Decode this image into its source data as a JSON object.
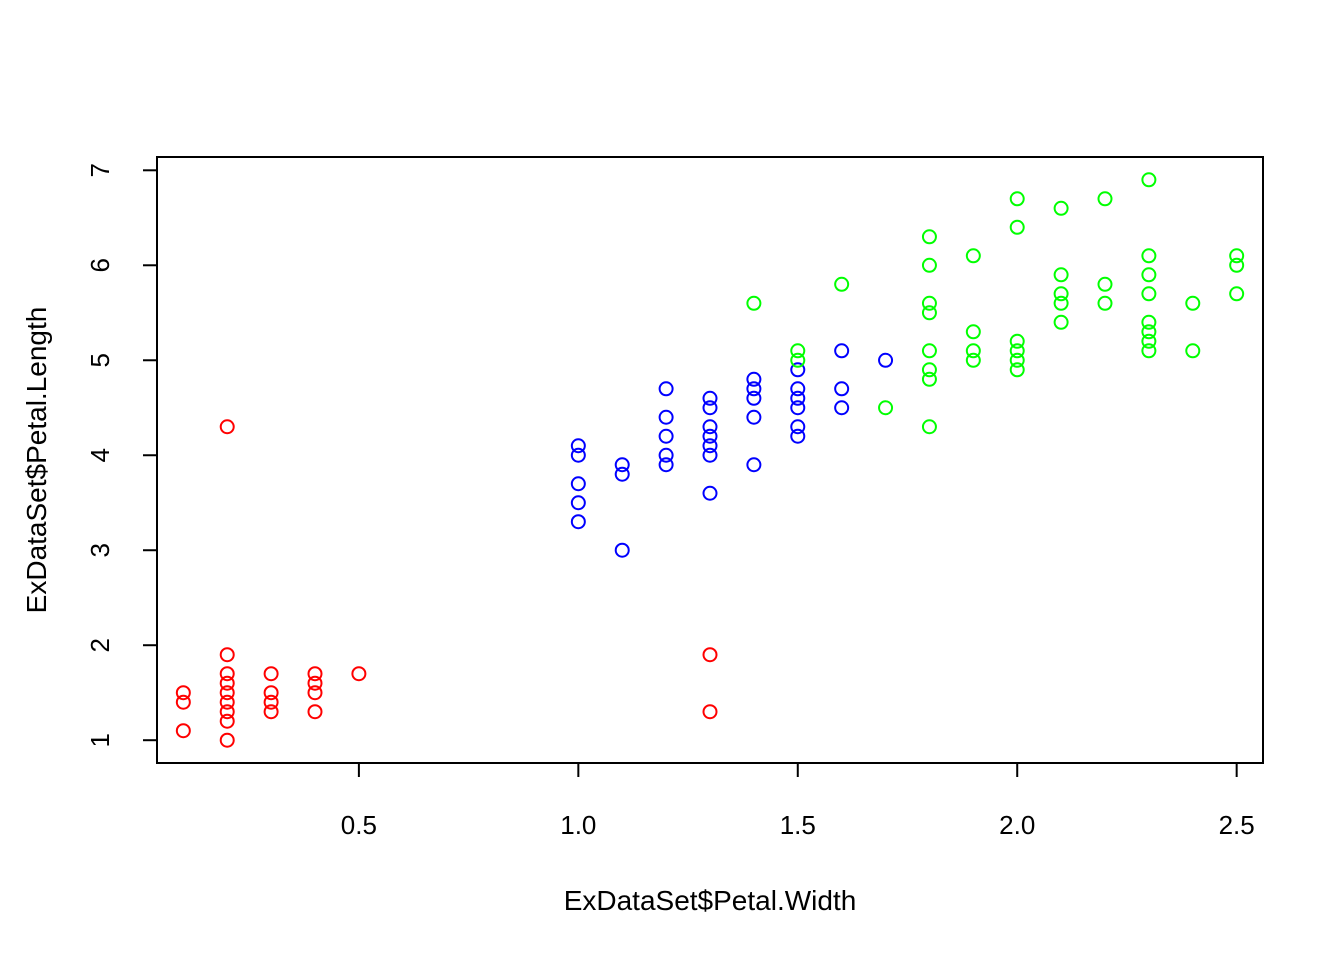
{
  "chart_data": {
    "type": "scatter",
    "title": "",
    "xlabel": "ExDataSet$Petal.Width",
    "ylabel": "ExDataSet$Petal.Length",
    "xlim": [
      0.04,
      2.56
    ],
    "ylim": [
      0.76,
      7.14
    ],
    "x_ticks": [
      0.5,
      1.0,
      1.5,
      2.0,
      2.5
    ],
    "x_tick_labels": [
      "0.5",
      "1.0",
      "1.5",
      "2.0",
      "2.5"
    ],
    "y_ticks": [
      1,
      2,
      3,
      4,
      5,
      6,
      7
    ],
    "y_tick_labels": [
      "1",
      "2",
      "3",
      "4",
      "5",
      "6",
      "7"
    ],
    "grid": false,
    "legend": "none",
    "marker": "open-circle",
    "series": [
      {
        "color": "#ff0000",
        "points": [
          [
            0.1,
            1.1
          ],
          [
            0.1,
            1.4
          ],
          [
            0.1,
            1.5
          ],
          [
            0.2,
            1.0
          ],
          [
            0.2,
            1.2
          ],
          [
            0.2,
            1.3
          ],
          [
            0.2,
            1.4
          ],
          [
            0.2,
            1.5
          ],
          [
            0.2,
            1.6
          ],
          [
            0.2,
            1.7
          ],
          [
            0.2,
            1.9
          ],
          [
            0.2,
            4.3
          ],
          [
            0.3,
            1.3
          ],
          [
            0.3,
            1.4
          ],
          [
            0.3,
            1.5
          ],
          [
            0.3,
            1.7
          ],
          [
            0.4,
            1.3
          ],
          [
            0.4,
            1.5
          ],
          [
            0.4,
            1.6
          ],
          [
            0.4,
            1.7
          ],
          [
            0.5,
            1.7
          ],
          [
            1.3,
            1.3
          ],
          [
            1.3,
            1.9
          ]
        ]
      },
      {
        "color": "#0000ff",
        "points": [
          [
            1.0,
            3.3
          ],
          [
            1.0,
            3.5
          ],
          [
            1.0,
            3.7
          ],
          [
            1.0,
            4.0
          ],
          [
            1.0,
            4.1
          ],
          [
            1.1,
            3.0
          ],
          [
            1.1,
            3.8
          ],
          [
            1.1,
            3.9
          ],
          [
            1.2,
            3.9
          ],
          [
            1.2,
            4.0
          ],
          [
            1.2,
            4.2
          ],
          [
            1.2,
            4.4
          ],
          [
            1.2,
            4.7
          ],
          [
            1.3,
            3.6
          ],
          [
            1.3,
            4.0
          ],
          [
            1.3,
            4.1
          ],
          [
            1.3,
            4.2
          ],
          [
            1.3,
            4.3
          ],
          [
            1.3,
            4.5
          ],
          [
            1.3,
            4.6
          ],
          [
            1.4,
            3.9
          ],
          [
            1.4,
            4.4
          ],
          [
            1.4,
            4.6
          ],
          [
            1.4,
            4.7
          ],
          [
            1.4,
            4.8
          ],
          [
            1.5,
            4.2
          ],
          [
            1.5,
            4.3
          ],
          [
            1.5,
            4.5
          ],
          [
            1.5,
            4.6
          ],
          [
            1.5,
            4.7
          ],
          [
            1.5,
            4.9
          ],
          [
            1.6,
            4.5
          ],
          [
            1.6,
            4.7
          ],
          [
            1.6,
            5.1
          ],
          [
            1.7,
            5.0
          ]
        ]
      },
      {
        "color": "#00ff00",
        "points": [
          [
            1.4,
            5.6
          ],
          [
            1.5,
            5.0
          ],
          [
            1.5,
            5.1
          ],
          [
            1.6,
            5.8
          ],
          [
            1.7,
            4.5
          ],
          [
            1.8,
            4.3
          ],
          [
            1.8,
            4.8
          ],
          [
            1.8,
            4.9
          ],
          [
            1.8,
            5.1
          ],
          [
            1.8,
            5.5
          ],
          [
            1.8,
            5.6
          ],
          [
            1.8,
            6.0
          ],
          [
            1.8,
            6.3
          ],
          [
            1.9,
            5.0
          ],
          [
            1.9,
            5.1
          ],
          [
            1.9,
            5.3
          ],
          [
            1.9,
            6.1
          ],
          [
            2.0,
            4.9
          ],
          [
            2.0,
            5.0
          ],
          [
            2.0,
            5.1
          ],
          [
            2.0,
            5.2
          ],
          [
            2.0,
            6.4
          ],
          [
            2.0,
            6.7
          ],
          [
            2.1,
            5.4
          ],
          [
            2.1,
            5.6
          ],
          [
            2.1,
            5.7
          ],
          [
            2.1,
            5.9
          ],
          [
            2.1,
            6.6
          ],
          [
            2.2,
            5.6
          ],
          [
            2.2,
            5.8
          ],
          [
            2.2,
            6.7
          ],
          [
            2.3,
            5.1
          ],
          [
            2.3,
            5.2
          ],
          [
            2.3,
            5.3
          ],
          [
            2.3,
            5.4
          ],
          [
            2.3,
            5.7
          ],
          [
            2.3,
            5.9
          ],
          [
            2.3,
            6.1
          ],
          [
            2.3,
            6.9
          ],
          [
            2.4,
            5.1
          ],
          [
            2.4,
            5.6
          ],
          [
            2.5,
            5.7
          ],
          [
            2.5,
            6.0
          ],
          [
            2.5,
            6.1
          ]
        ]
      }
    ]
  }
}
